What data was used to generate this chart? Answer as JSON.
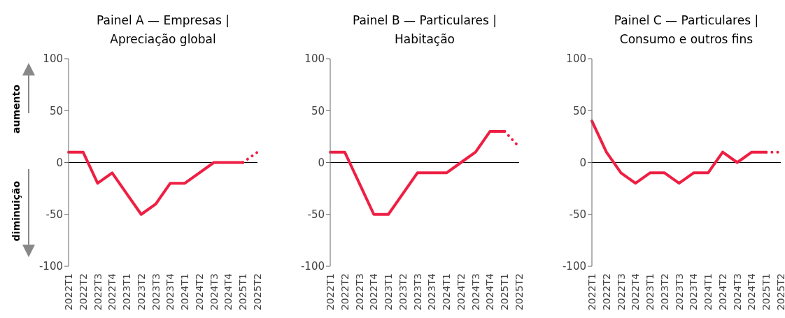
{
  "chart_data": [
    {
      "type": "line",
      "title": "Painel A — Empresas | Apreciação global",
      "categories": [
        "2022T1",
        "2022T2",
        "2022T3",
        "2022T4",
        "2023T1",
        "2023T2",
        "2023T3",
        "2023T4",
        "2024T1",
        "2024T2",
        "2024T3",
        "2024T4",
        "2025T1",
        "2025T2"
      ],
      "ylim": [
        -100,
        100
      ],
      "yticks": [
        -100,
        -50,
        0,
        50,
        100
      ],
      "grid": false,
      "legend": false,
      "marker": "none",
      "ref_lines": [
        {
          "axis": "y",
          "value": 0,
          "color": "#000000"
        }
      ],
      "annotations": [
        "aumento",
        "diminuição"
      ],
      "series": [
        {
          "color": "#ee1f43",
          "line_style": "solid",
          "values": [
            10,
            10,
            -20,
            -10,
            -30,
            -50,
            -40,
            -20,
            -20,
            -10,
            0,
            0,
            0,
            null
          ]
        },
        {
          "color": "#ee1f43",
          "line_style": "dotted",
          "values": [
            null,
            null,
            null,
            null,
            null,
            null,
            null,
            null,
            null,
            null,
            null,
            null,
            0,
            10
          ]
        }
      ]
    },
    {
      "type": "line",
      "title": "Painel B — Particulares | Habitação",
      "categories": [
        "2022T1",
        "2022T2",
        "2022T3",
        "2022T4",
        "2023T1",
        "2023T2",
        "2023T3",
        "2023T4",
        "2024T1",
        "2024T2",
        "2024T3",
        "2024T4",
        "2025T1",
        "2025T2"
      ],
      "ylim": [
        -100,
        100
      ],
      "yticks": [
        -100,
        -50,
        0,
        50,
        100
      ],
      "grid": false,
      "legend": false,
      "marker": "none",
      "ref_lines": [
        {
          "axis": "y",
          "value": 0,
          "color": "#000000"
        }
      ],
      "series": [
        {
          "color": "#ee1f43",
          "line_style": "solid",
          "values": [
            10,
            10,
            -20,
            -50,
            -50,
            -30,
            -10,
            -10,
            -10,
            0,
            10,
            30,
            30,
            null
          ]
        },
        {
          "color": "#ee1f43",
          "line_style": "dotted",
          "values": [
            null,
            null,
            null,
            null,
            null,
            null,
            null,
            null,
            null,
            null,
            null,
            null,
            30,
            15
          ]
        }
      ]
    },
    {
      "type": "line",
      "title": "Painel C — Particulares | Consumo e outros fins",
      "categories": [
        "2022T1",
        "2022T2",
        "2022T3",
        "2022T4",
        "2023T1",
        "2023T2",
        "2023T3",
        "2023T4",
        "2024T1",
        "2024T2",
        "2024T3",
        "2024T4",
        "2025T1",
        "2025T2"
      ],
      "ylim": [
        -100,
        100
      ],
      "yticks": [
        -100,
        -50,
        0,
        50,
        100
      ],
      "grid": false,
      "legend": false,
      "marker": "none",
      "ref_lines": [
        {
          "axis": "y",
          "value": 0,
          "color": "#000000"
        }
      ],
      "series": [
        {
          "color": "#ee1f43",
          "line_style": "solid",
          "values": [
            40,
            10,
            -10,
            -20,
            -10,
            -10,
            -20,
            -10,
            -10,
            10,
            0,
            10,
            10,
            null
          ]
        },
        {
          "color": "#ee1f43",
          "line_style": "dotted",
          "values": [
            null,
            null,
            null,
            null,
            null,
            null,
            null,
            null,
            null,
            null,
            null,
            null,
            10,
            10
          ]
        }
      ]
    }
  ]
}
